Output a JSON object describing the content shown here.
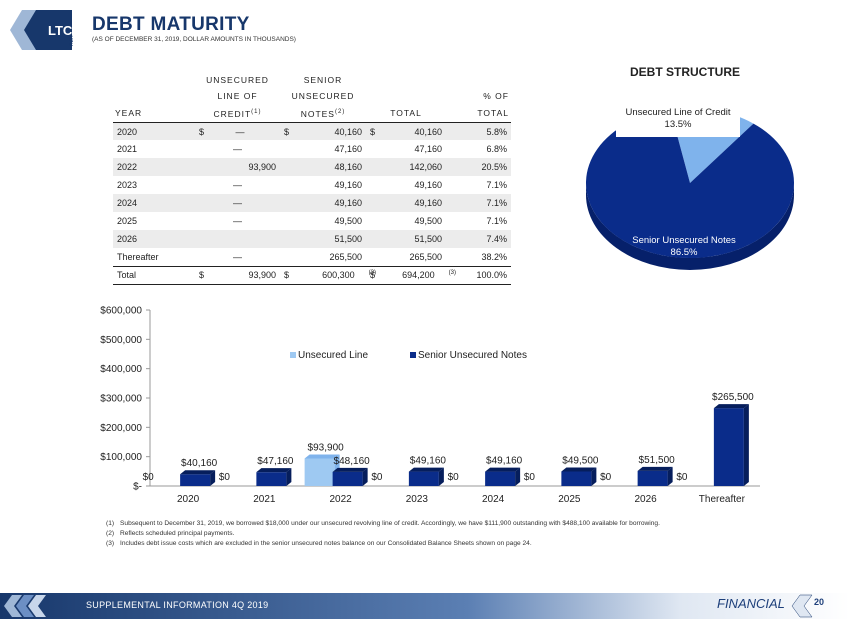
{
  "logo": {
    "text": "LTC",
    "sub": "REIT"
  },
  "title": "DEBT MATURITY",
  "subtitle": "(AS OF DECEMBER 31, 2019, DOLLAR AMOUNTS IN THOUSANDS)",
  "table": {
    "headers": {
      "year": "YEAR",
      "credit": [
        "UNSECURED",
        "LINE OF",
        "CREDIT"
      ],
      "credit_sup": "(1)",
      "notes": [
        "SENIOR",
        "UNSECURED",
        "NOTES"
      ],
      "notes_sup": "(2)",
      "total": "TOTAL",
      "pct": [
        "% OF",
        "TOTAL"
      ]
    },
    "rows": [
      {
        "year": "2020",
        "credit": "—",
        "notes": "40,160",
        "total": "40,160",
        "pct": "5.8%"
      },
      {
        "year": "2021",
        "credit": "—",
        "notes": "47,160",
        "total": "47,160",
        "pct": "6.8%"
      },
      {
        "year": "2022",
        "credit": "93,900",
        "notes": "48,160",
        "total": "142,060",
        "pct": "20.5%"
      },
      {
        "year": "2023",
        "credit": "—",
        "notes": "49,160",
        "total": "49,160",
        "pct": "7.1%"
      },
      {
        "year": "2024",
        "credit": "—",
        "notes": "49,160",
        "total": "49,160",
        "pct": "7.1%"
      },
      {
        "year": "2025",
        "credit": "—",
        "notes": "49,500",
        "total": "49,500",
        "pct": "7.1%"
      },
      {
        "year": "2026",
        "credit": "",
        "notes": "51,500",
        "total": "51,500",
        "pct": "7.4%"
      },
      {
        "year": "Thereafter",
        "credit": "—",
        "notes": "265,500",
        "total": "265,500",
        "pct": "38.2%"
      }
    ],
    "total_row": {
      "year": "Total",
      "credit": "93,900",
      "notes": "600,300",
      "notes_sup": "(3)",
      "total": "694,200",
      "total_sup": "(3)",
      "pct": "100.0%"
    },
    "dollar": "$"
  },
  "pie_title": "DEBT STRUCTURE",
  "chart_data": [
    {
      "type": "pie",
      "title": "DEBT STRUCTURE",
      "slices": [
        {
          "label": "Unsecured Line of Credit",
          "value": 13.5,
          "value_label": "13.5%",
          "color": "#7fb3ec"
        },
        {
          "label": "Senior Unsecured Notes",
          "value": 86.5,
          "value_label": "86.5%",
          "color": "#0a2c8a"
        }
      ]
    },
    {
      "type": "bar",
      "categories": [
        "2020",
        "2021",
        "2022",
        "2023",
        "2024",
        "2025",
        "2026",
        "Thereafter"
      ],
      "series": [
        {
          "name": "Unsecured Line",
          "values": [
            0,
            0,
            93900,
            0,
            0,
            0,
            0,
            0
          ],
          "color": "#9ec9f2",
          "labels": [
            "$0",
            "$0",
            "$93,900",
            "$0",
            "$0",
            "$0",
            "$0",
            "$0"
          ]
        },
        {
          "name": "Senior Unsecured Notes",
          "values": [
            40160,
            47160,
            48160,
            49160,
            49160,
            49500,
            51500,
            265500
          ],
          "color": "#0a2c8a",
          "labels": [
            "$40,160",
            "$47,160",
            "$48,160",
            "$49,160",
            "$49,160",
            "$49,500",
            "$51,500",
            "$265,500"
          ]
        }
      ],
      "ylim": [
        0,
        600000
      ],
      "yticks": [
        0,
        100000,
        200000,
        300000,
        400000,
        500000,
        600000
      ],
      "ytick_labels": [
        "$-",
        "$100,000",
        "$200,000",
        "$300,000",
        "$400,000",
        "$500,000",
        "$600,000"
      ],
      "legend_position": "top-center",
      "grid": false
    }
  ],
  "footnotes": [
    {
      "num": "(1)",
      "text": "Subsequent to December 31, 2019, we borrowed $18,000 under our unsecured revolving line of credit.  Accordingly, we have $111,900 outstanding with $488,100 available for borrowing."
    },
    {
      "num": "(2)",
      "text": "Reflects scheduled principal payments."
    },
    {
      "num": "(3)",
      "text": "Includes debt issue costs which are excluded in the senior unsecured notes balance on our Consolidated Balance Sheets shown on page 24."
    }
  ],
  "footer": {
    "left": "SUPPLEMENTAL INFORMATION  4Q 2019",
    "section": "FINANCIAL",
    "page": "20"
  },
  "colors": {
    "brand": "#17376b",
    "accent": "#0a2c8a",
    "light": "#7fb3ec"
  }
}
